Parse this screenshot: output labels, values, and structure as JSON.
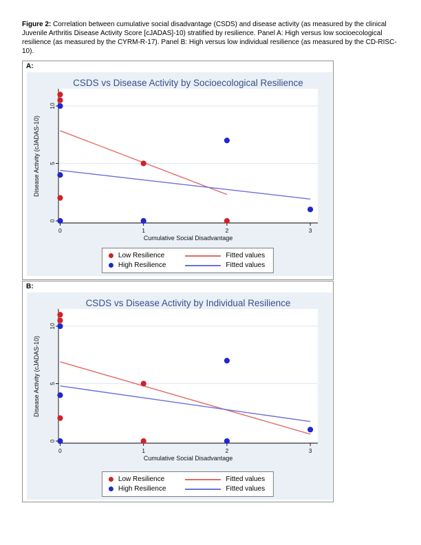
{
  "caption": {
    "label": "Figure 2:",
    "text": "Correlation between cumulative social disadvantage (CSDS) and disease activity (as measured by the clinical Juvenile Arthritis Disease Activity Score [cJADAS]-10) stratified by resilience. Panel A: High versus low socioecological resilience (as measured by the CYRM-R-17). Panel B: High versus low individual resilience (as measured by the CD-RISC-10)."
  },
  "panels": [
    {
      "label": "A:"
    },
    {
      "label": "B:"
    }
  ],
  "chart_data": [
    {
      "type": "scatter",
      "title": "CSDS vs Disease Activity by Socioecological Resilience",
      "xlabel": "Cumulative Social Disadvantage",
      "ylabel": "Disease Activity (cJADAS-10)",
      "xticks": [
        0,
        1,
        2,
        3
      ],
      "yticks": [
        0,
        5,
        10
      ],
      "ygrid": [
        5,
        10
      ],
      "xlim": [
        -0.02,
        3.09
      ],
      "ylim": [
        -0.18,
        11.5
      ],
      "legend_position": "bottom-center",
      "series": [
        {
          "name": "Low Resilience",
          "marker": "circle",
          "color": "#cf2229",
          "points": [
            [
              0,
              11
            ],
            [
              0,
              10.5
            ],
            [
              0,
              2
            ],
            [
              1,
              5
            ],
            [
              2,
              0
            ]
          ]
        },
        {
          "name": "High Resilience",
          "marker": "circle",
          "color": "#2127cd",
          "points": [
            [
              0,
              10
            ],
            [
              0,
              4
            ],
            [
              0,
              0
            ],
            [
              1,
              0
            ],
            [
              2,
              7
            ],
            [
              3,
              1
            ]
          ]
        }
      ],
      "fit_lines": [
        {
          "name": "Fitted values",
          "color": "#e06a66",
          "x": [
            0,
            2
          ],
          "y": [
            7.85,
            2.3
          ]
        },
        {
          "name": "Fitted values",
          "color": "#6b6edb",
          "x": [
            0,
            3
          ],
          "y": [
            4.4,
            1.9
          ]
        }
      ]
    },
    {
      "type": "scatter",
      "title": "CSDS vs Disease Activity by Individual Resilience",
      "xlabel": "Cumulative Social Disadvantage",
      "ylabel": "Disease Activity (cJADAS-10)",
      "xticks": [
        0,
        1,
        2,
        3
      ],
      "yticks": [
        0,
        5,
        10
      ],
      "ygrid": [
        5,
        10
      ],
      "xlim": [
        -0.02,
        3.09
      ],
      "ylim": [
        -0.18,
        11.5
      ],
      "legend_position": "bottom-center",
      "series": [
        {
          "name": "Low Resilience",
          "marker": "circle",
          "color": "#cf2229",
          "points": [
            [
              0,
              11
            ],
            [
              0,
              10.5
            ],
            [
              0,
              2
            ],
            [
              1,
              5
            ],
            [
              1,
              0
            ]
          ]
        },
        {
          "name": "High Resilience",
          "marker": "circle",
          "color": "#2127cd",
          "points": [
            [
              0,
              10
            ],
            [
              0,
              4
            ],
            [
              0,
              0
            ],
            [
              2,
              7
            ],
            [
              2,
              0
            ],
            [
              3,
              1
            ]
          ]
        }
      ],
      "fit_lines": [
        {
          "name": "Fitted values",
          "color": "#e06a66",
          "x": [
            0,
            3
          ],
          "y": [
            6.9,
            0.6
          ]
        },
        {
          "name": "Fitted values",
          "color": "#6b6edb",
          "x": [
            0,
            3
          ],
          "y": [
            4.8,
            1.7
          ]
        }
      ]
    }
  ]
}
